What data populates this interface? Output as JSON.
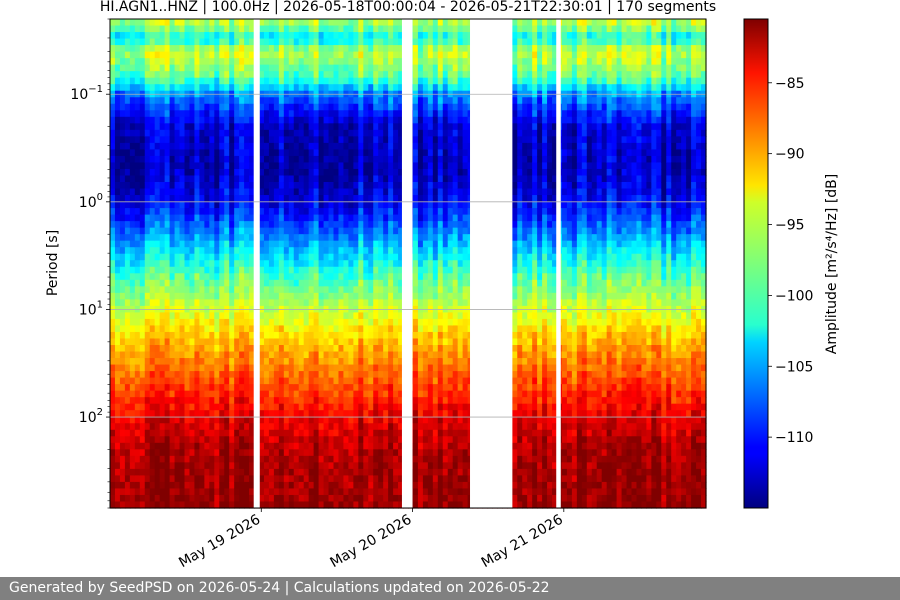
{
  "chart_data": {
    "type": "heatmap",
    "title": "HI.AGN1..HNZ | 100.0Hz | 2026-05-18T00:00:04 - 2026-05-21T22:30:01 | 170 segments",
    "ylabel": "Period [s]",
    "colorbar_label": "Amplitude [m²/s⁴/Hz] [dB]",
    "y_scale": "log",
    "y_inverted": true,
    "ylim": [
      0.02,
      700
    ],
    "y_ticks": [
      {
        "value": 0.1,
        "base": "10",
        "exp": "−1"
      },
      {
        "value": 1,
        "base": "10",
        "exp": "0"
      },
      {
        "value": 10,
        "base": "10",
        "exp": "1"
      },
      {
        "value": 100,
        "base": "10",
        "exp": "2"
      }
    ],
    "x_ticks": [
      {
        "label": "May 19 2026",
        "day": 1.0
      },
      {
        "label": "May 20 2026",
        "day": 2.0
      },
      {
        "label": "May 21 2026",
        "day": 3.0
      }
    ],
    "xlim_days": [
      0.0,
      3.94
    ],
    "data_gaps_days": [
      [
        0.95,
        0.99
      ],
      [
        1.93,
        2.0
      ],
      [
        2.38,
        2.66
      ],
      [
        2.95,
        2.98
      ]
    ],
    "colorbar": {
      "colormap": "jet",
      "range": [
        -115,
        -80.5
      ],
      "ticks": [
        -85,
        -90,
        -95,
        -100,
        -105,
        -110
      ]
    },
    "grid": true,
    "segments": 170,
    "approx_profile": [
      {
        "period": 0.022,
        "db": -96
      },
      {
        "period": 0.03,
        "db": -102
      },
      {
        "period": 0.04,
        "db": -95
      },
      {
        "period": 0.07,
        "db": -99
      },
      {
        "period": 0.1,
        "db": -106
      },
      {
        "period": 0.2,
        "db": -112
      },
      {
        "period": 0.5,
        "db": -113
      },
      {
        "period": 1,
        "db": -111
      },
      {
        "period": 2,
        "db": -106
      },
      {
        "period": 5,
        "db": -99
      },
      {
        "period": 10,
        "db": -95
      },
      {
        "period": 20,
        "db": -91
      },
      {
        "period": 50,
        "db": -87
      },
      {
        "period": 100,
        "db": -84
      },
      {
        "period": 200,
        "db": -82
      },
      {
        "period": 700,
        "db": -81
      }
    ]
  },
  "footer": {
    "text": "Generated by SeedPSD on 2026-05-24 | Calculations updated on 2026-05-22"
  }
}
